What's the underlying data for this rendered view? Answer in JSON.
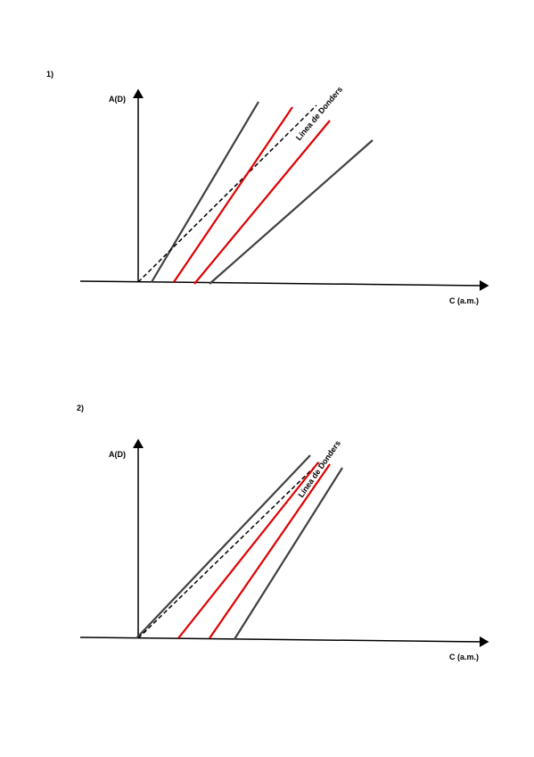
{
  "diagrams": [
    {
      "label": "1)",
      "y_axis": "A(D)",
      "x_axis": "C (a.m.)",
      "donders_line": "Línea de Donders"
    },
    {
      "label": "2)",
      "y_axis": "A(D)",
      "x_axis": "C (a.m.)",
      "donders_line": "Línea de Donders"
    }
  ]
}
